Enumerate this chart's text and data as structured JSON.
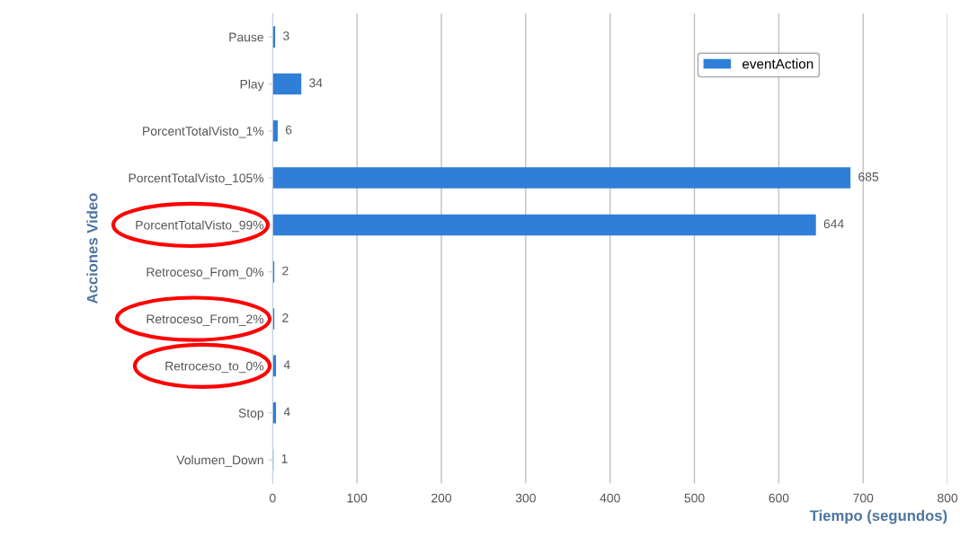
{
  "chart_data": {
    "type": "bar",
    "orientation": "horizontal",
    "categories": [
      "Pause",
      "Play",
      "PorcentTotalVisto_1%",
      "PorcentTotalVisto_105%",
      "PorcentTotalVisto_99%",
      "Retroceso_From_0%",
      "Retroceso_From_2%",
      "Retroceso_to_0%",
      "Stop",
      "Volumen_Down"
    ],
    "series": [
      {
        "name": "eventAction",
        "color": "#2f7ed8",
        "values": [
          3,
          34,
          6,
          685,
          644,
          2,
          2,
          4,
          4,
          1
        ]
      }
    ],
    "data_labels": true,
    "xlabel": "Tiempo (segundos)",
    "ylabel": "Acciones Video",
    "xlim": [
      0,
      800
    ],
    "xticks": [
      0,
      100,
      200,
      300,
      400,
      500,
      600,
      700,
      800
    ],
    "grid": "x",
    "legend": "top right"
  }
}
